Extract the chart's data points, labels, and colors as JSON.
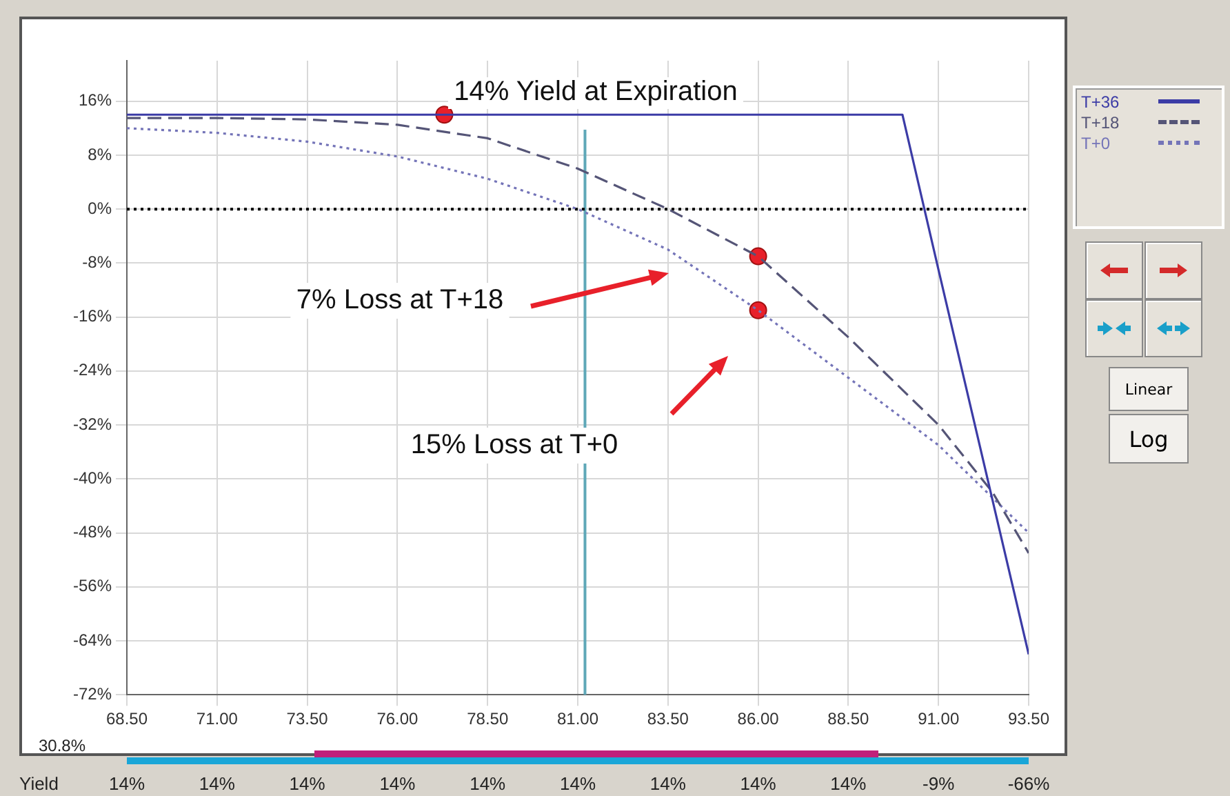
{
  "chart_data": {
    "type": "line",
    "xlim": [
      68.5,
      93.5
    ],
    "xticks": [
      {
        "value": 68.5,
        "label": "68.50"
      },
      {
        "value": 71,
        "label": "71.00"
      },
      {
        "value": 73.5,
        "label": "73.50"
      },
      {
        "value": 76,
        "label": "76.00"
      },
      {
        "value": 78.5,
        "label": "78.50"
      },
      {
        "value": 81,
        "label": "81.00"
      },
      {
        "value": 83.5,
        "label": "83.50"
      },
      {
        "value": 86,
        "label": "86.00"
      },
      {
        "value": 88.5,
        "label": "88.50"
      },
      {
        "value": 91,
        "label": "91.00"
      },
      {
        "value": 93.5,
        "label": "93.50"
      }
    ],
    "ylim": [
      -72,
      22
    ],
    "yticks": [
      {
        "value": 16,
        "label": "16%"
      },
      {
        "value": 8,
        "label": "8%"
      },
      {
        "value": 0,
        "label": "0%"
      },
      {
        "value": -8,
        "label": "-8%"
      },
      {
        "value": -16,
        "label": "-16%"
      },
      {
        "value": -24,
        "label": "-24%"
      },
      {
        "value": -32,
        "label": "-32%"
      },
      {
        "value": -40,
        "label": "-40%"
      },
      {
        "value": -48,
        "label": "-48%"
      },
      {
        "value": -56,
        "label": "-56%"
      },
      {
        "value": -64,
        "label": "-64%"
      },
      {
        "value": -72,
        "label": "-72%"
      }
    ],
    "grid": true,
    "legend": "right",
    "series": [
      {
        "name": "T+36",
        "color": "#3c3ca6",
        "line_style": "solid",
        "marker": "none",
        "x": [
          68.5,
          71,
          73.5,
          76,
          78.5,
          81,
          83.5,
          86,
          88.5,
          90,
          91,
          93.5
        ],
        "values": [
          14,
          14,
          14,
          14,
          14,
          14,
          14,
          14,
          14,
          14,
          -9,
          -66
        ]
      },
      {
        "name": "T+18",
        "color": "#555577",
        "line_style": "dashed",
        "marker": "none",
        "x": [
          68.5,
          71,
          73.5,
          76,
          78.5,
          81,
          83.5,
          86,
          88.5,
          91,
          92.5,
          93.5
        ],
        "values": [
          13.5,
          13.5,
          13.3,
          12.5,
          10.5,
          6,
          0,
          -7,
          -19,
          -32,
          -42,
          -51
        ]
      },
      {
        "name": "T+0",
        "color": "#7474b8",
        "line_style": "dotted",
        "marker": "none",
        "x": [
          68.5,
          71,
          73.5,
          76,
          78.5,
          81,
          83.5,
          86,
          88.5,
          91,
          93.5
        ],
        "values": [
          12,
          11.3,
          10,
          7.8,
          4.5,
          0,
          -6,
          -15,
          -25,
          -35,
          -48
        ]
      },
      {
        "type": "scatter",
        "color": "#e8202a",
        "marker": "circle",
        "x": [
          77.3,
          86,
          86
        ],
        "values": [
          14,
          -7,
          -15
        ]
      }
    ],
    "ref_lines": [
      {
        "axis": "x",
        "value": 81.2,
        "color": "#5fa8b8",
        "line_style": "solid"
      },
      {
        "axis": "y",
        "value": 0,
        "color": "#000000",
        "line_style": "dotted"
      }
    ],
    "annotations": [
      "14% Yield at Expiration",
      "7% Loss at T+18",
      "15% Loss at T+0",
      "Yield",
      "14%",
      "14%",
      "14%",
      "14%",
      "14%",
      "14%",
      "14%",
      "14%",
      "14%",
      "-9%",
      "-66%",
      "30.8%",
      "Linear",
      "Log"
    ]
  }
}
